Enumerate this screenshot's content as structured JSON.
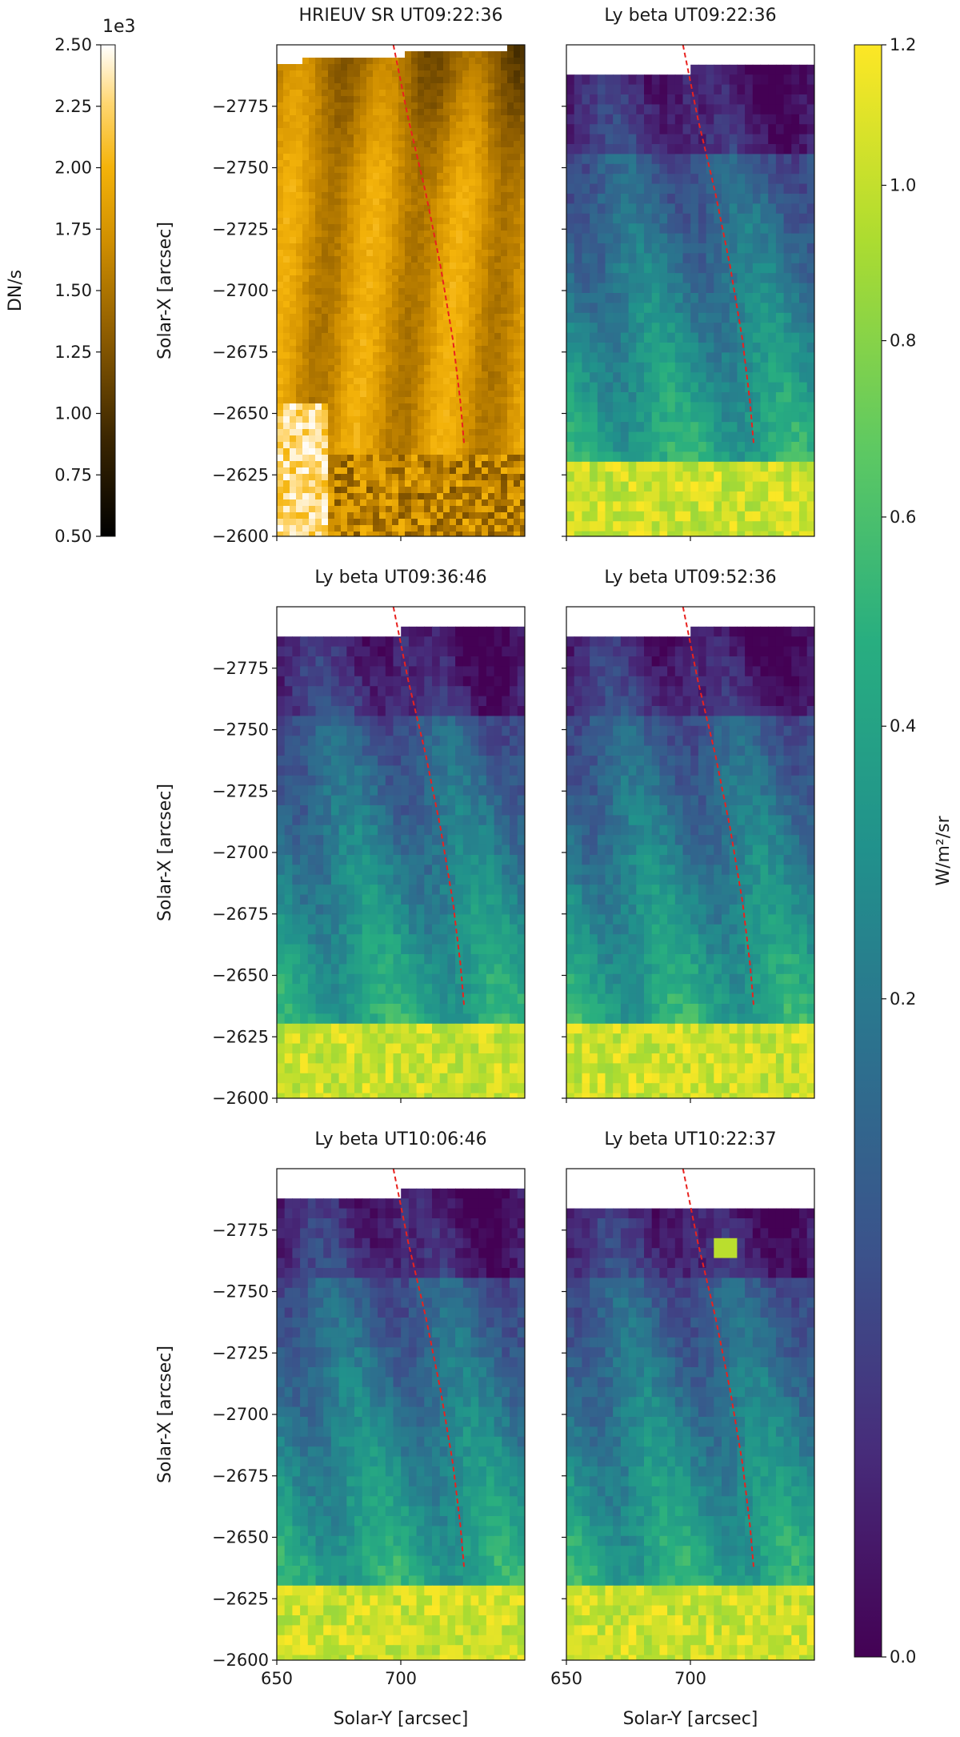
{
  "figure": {
    "panels": [
      {
        "title": "HRIEUV SR UT09:22:36",
        "kind": "hrieuv"
      },
      {
        "title": "Ly beta UT09:22:36",
        "kind": "lyb",
        "blip": false,
        "blob": false
      },
      {
        "title": "Ly beta UT09:36:46",
        "kind": "lyb",
        "blip": false,
        "blob": false
      },
      {
        "title": "Ly beta UT09:52:36",
        "kind": "lyb",
        "blip": false,
        "blob": false
      },
      {
        "title": "Ly beta UT10:06:46",
        "kind": "lyb",
        "blip": false,
        "blob": false
      },
      {
        "title": "Ly beta UT10:22:37",
        "kind": "lyb",
        "blip": true,
        "blob": true
      }
    ],
    "axes": {
      "xlabel": "Solar-Y [arcsec]",
      "ylabel": "Solar-X [arcsec]",
      "xlim": [
        650,
        750
      ],
      "ylim": [
        -2600,
        -2800
      ],
      "xticks": [
        650,
        700
      ],
      "yticks": [
        -2775,
        -2750,
        -2725,
        -2700,
        -2675,
        -2650,
        -2625,
        -2600
      ]
    },
    "colorbar_left": {
      "label": "DN/s",
      "multiplier": "1e3",
      "range": [
        0.5,
        2.5
      ],
      "ticks": [
        "0.50",
        "0.75",
        "1.00",
        "1.25",
        "1.50",
        "1.75",
        "2.00",
        "2.25",
        "2.50"
      ],
      "colormap": "sdoaia171-like gold"
    },
    "colorbar_right": {
      "label": "W/m²/sr",
      "scale": "sqrt",
      "range": [
        0.0,
        1.2
      ],
      "ticks": [
        {
          "v": 0.0,
          "t": "0.0"
        },
        {
          "v": 0.2,
          "t": "0.2"
        },
        {
          "v": 0.4,
          "t": "0.4"
        },
        {
          "v": 0.6,
          "t": "0.6"
        },
        {
          "v": 0.8,
          "t": "0.8"
        },
        {
          "v": 1.0,
          "t": "1.0"
        },
        {
          "v": 1.2,
          "t": "1.2"
        }
      ],
      "colormap": "viridis"
    },
    "trace": {
      "color": "#e8221f",
      "x": [
        697,
        703,
        710,
        716,
        721,
        724,
        725.5
      ],
      "y": [
        -2800,
        -2770,
        -2740,
        -2710,
        -2680,
        -2655,
        -2638
      ]
    }
  },
  "chart_data": {
    "type": "heatmap",
    "panels": [
      "HRIEUV SR UT09:22:36",
      "Ly beta UT09:22:36",
      "Ly beta UT09:36:46",
      "Ly beta UT09:52:36",
      "Ly beta UT10:06:46",
      "Ly beta UT10:22:37"
    ],
    "xlabel": "Solar-Y [arcsec]",
    "ylabel": "Solar-X [arcsec]",
    "xlim": [
      650,
      750
    ],
    "ylim": [
      -2600,
      -2800
    ],
    "colorbars": [
      {
        "label": "DN/s",
        "range": [
          500,
          2500
        ],
        "units_note": "1e3"
      },
      {
        "label": "W/m²/sr",
        "range": [
          0.0,
          1.2
        ]
      }
    ],
    "series": [
      {
        "name": "trace",
        "x": [
          697,
          703,
          710,
          716,
          721,
          724,
          725.5
        ],
        "y": [
          -2800,
          -2770,
          -2740,
          -2710,
          -2680,
          -2655,
          -2638
        ]
      }
    ]
  }
}
